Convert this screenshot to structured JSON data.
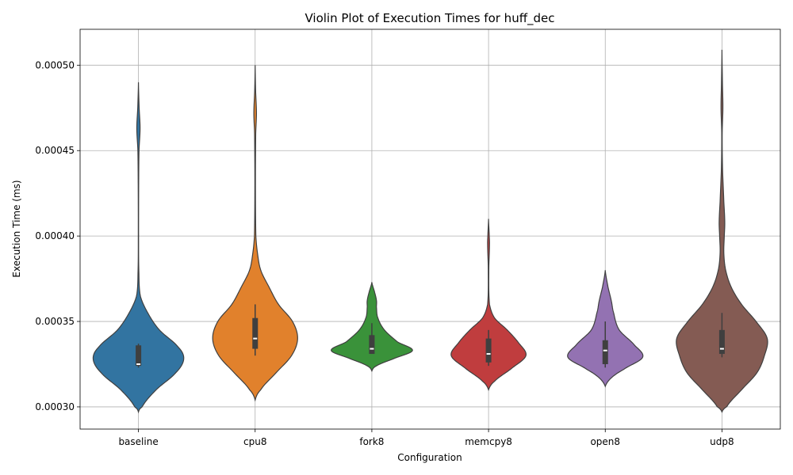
{
  "chart_data": {
    "type": "violin",
    "title": "Violin Plot of Execution Times for huff_dec",
    "xlabel": "Configuration",
    "ylabel": "Execution Time (ms)",
    "ylim": [
      0.000287,
      0.000521
    ],
    "yticks": [
      0.0003,
      0.00035,
      0.0004,
      0.00045,
      0.0005
    ],
    "ytick_labels": [
      "0.00030",
      "0.00035",
      "0.00040",
      "0.00045",
      "0.00050"
    ],
    "grid": true,
    "categories": [
      "baseline",
      "cpu8",
      "fork8",
      "memcpy8",
      "open8",
      "udp8"
    ],
    "series": [
      {
        "category": "baseline",
        "color": "#3274a1",
        "quartiles": [
          0.000324,
          0.000325,
          0.000336
        ],
        "whisker": [
          0.000323,
          0.000337
        ],
        "density": [
          [
            0.000297,
            0.0
          ],
          [
            0.0003,
            0.08
          ],
          [
            0.00031,
            0.38
          ],
          [
            0.00032,
            0.8
          ],
          [
            0.000328,
            0.97
          ],
          [
            0.000335,
            0.85
          ],
          [
            0.000345,
            0.45
          ],
          [
            0.000355,
            0.2
          ],
          [
            0.000365,
            0.04
          ],
          [
            0.00038,
            0.008
          ],
          [
            0.0004,
            0.003
          ],
          [
            0.00043,
            0.005
          ],
          [
            0.00045,
            0.012
          ],
          [
            0.000463,
            0.035
          ],
          [
            0.000475,
            0.015
          ],
          [
            0.00049,
            0.0
          ]
        ]
      },
      {
        "category": "cpu8",
        "color": "#e1812c",
        "quartiles": [
          0.000334,
          0.00034,
          0.000352
        ],
        "whisker": [
          0.00033,
          0.00036
        ],
        "density": [
          [
            0.000304,
            0.0
          ],
          [
            0.00031,
            0.12
          ],
          [
            0.00032,
            0.45
          ],
          [
            0.00033,
            0.78
          ],
          [
            0.00034,
            0.91
          ],
          [
            0.00035,
            0.8
          ],
          [
            0.00036,
            0.5
          ],
          [
            0.00037,
            0.3
          ],
          [
            0.00038,
            0.12
          ],
          [
            0.00039,
            0.05
          ],
          [
            0.0004,
            0.015
          ],
          [
            0.00043,
            0.006
          ],
          [
            0.00046,
            0.012
          ],
          [
            0.000472,
            0.028
          ],
          [
            0.000485,
            0.01
          ],
          [
            0.0005,
            0.0
          ]
        ]
      },
      {
        "category": "fork8",
        "color": "#3a923a",
        "quartiles": [
          0.000331,
          0.000334,
          0.000342
        ],
        "whisker": [
          0.000331,
          0.000349
        ],
        "density": [
          [
            0.000321,
            0.0
          ],
          [
            0.000324,
            0.1
          ],
          [
            0.000328,
            0.45
          ],
          [
            0.000333,
            0.87
          ],
          [
            0.000338,
            0.55
          ],
          [
            0.000345,
            0.27
          ],
          [
            0.000352,
            0.13
          ],
          [
            0.000358,
            0.1
          ],
          [
            0.000362,
            0.1
          ],
          [
            0.000367,
            0.06
          ],
          [
            0.000373,
            0.0
          ]
        ]
      },
      {
        "category": "memcpy8",
        "color": "#c03d3e",
        "quartiles": [
          0.000326,
          0.000331,
          0.00034
        ],
        "whisker": [
          0.000324,
          0.000345
        ],
        "density": [
          [
            0.00031,
            0.0
          ],
          [
            0.000315,
            0.13
          ],
          [
            0.000322,
            0.47
          ],
          [
            0.00033,
            0.8
          ],
          [
            0.000338,
            0.63
          ],
          [
            0.000345,
            0.4
          ],
          [
            0.000352,
            0.13
          ],
          [
            0.00036,
            0.02
          ],
          [
            0.00038,
            0.006
          ],
          [
            0.000395,
            0.02
          ],
          [
            0.0004,
            0.015
          ],
          [
            0.00041,
            0.0
          ]
        ]
      },
      {
        "category": "open8",
        "color": "#9372b2",
        "quartiles": [
          0.000325,
          0.000333,
          0.000339
        ],
        "whisker": [
          0.000323,
          0.00035
        ],
        "density": [
          [
            0.000312,
            0.0
          ],
          [
            0.000317,
            0.13
          ],
          [
            0.000322,
            0.4
          ],
          [
            0.000329,
            0.8
          ],
          [
            0.000336,
            0.63
          ],
          [
            0.000345,
            0.3
          ],
          [
            0.000355,
            0.18
          ],
          [
            0.000362,
            0.13
          ],
          [
            0.00037,
            0.06
          ],
          [
            0.00038,
            0.0
          ]
        ]
      },
      {
        "category": "udp8",
        "color": "#845b53",
        "quartiles": [
          0.000331,
          0.000334,
          0.000345
        ],
        "whisker": [
          0.000329,
          0.000355
        ],
        "density": [
          [
            0.000297,
            0.0
          ],
          [
            0.0003,
            0.1
          ],
          [
            0.00031,
            0.42
          ],
          [
            0.00032,
            0.75
          ],
          [
            0.00033,
            0.91
          ],
          [
            0.00034,
            0.97
          ],
          [
            0.00035,
            0.73
          ],
          [
            0.00036,
            0.42
          ],
          [
            0.00037,
            0.2
          ],
          [
            0.00038,
            0.08
          ],
          [
            0.00039,
            0.04
          ],
          [
            0.0004,
            0.05
          ],
          [
            0.000408,
            0.06
          ],
          [
            0.00042,
            0.04
          ],
          [
            0.00044,
            0.012
          ],
          [
            0.00046,
            0.005
          ],
          [
            0.000475,
            0.02
          ],
          [
            0.00049,
            0.01
          ],
          [
            0.000509,
            0.0
          ]
        ]
      }
    ]
  }
}
